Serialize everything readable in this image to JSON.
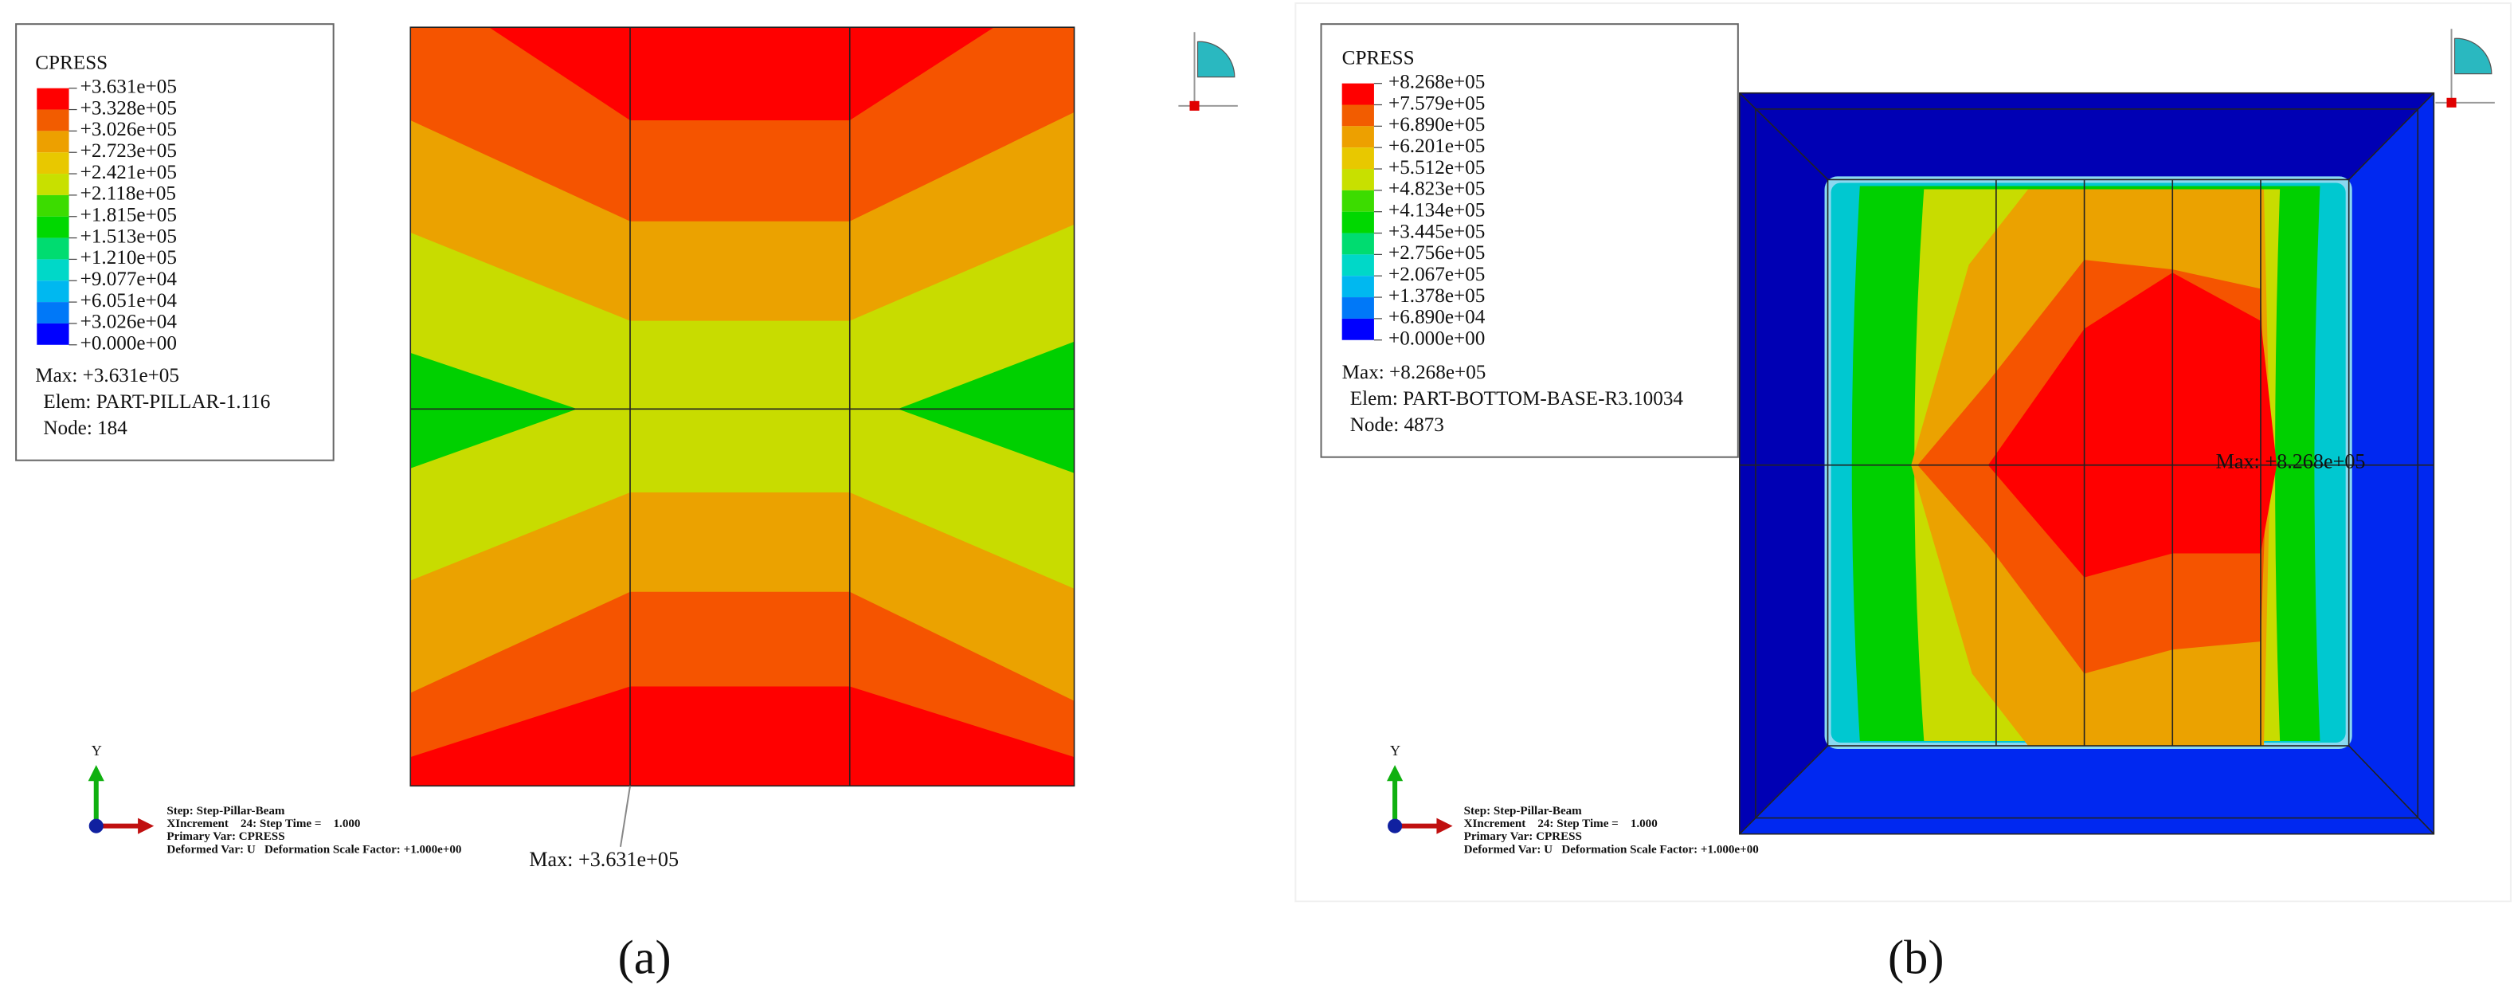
{
  "panels": [
    {
      "legend": {
        "title": "CPRESS",
        "labels": [
          "+3.631e+05",
          "+3.328e+05",
          "+3.026e+05",
          "+2.723e+05",
          "+2.421e+05",
          "+2.118e+05",
          "+1.815e+05",
          "+1.513e+05",
          "+1.210e+05",
          "+9.077e+04",
          "+6.051e+04",
          "+3.026e+04",
          "+0.000e+00"
        ]
      },
      "summary": [
        "Max: +3.631e+05",
        "Elem: PART-PILLAR-1.116",
        "Node: 184"
      ],
      "triad_label": "Y",
      "step_info": [
        "Step: Step-Pillar-Beam",
        "XIncrement    24: Step Time =    1.000",
        "Primary Var: CPRESS",
        "Deformed Var: U   Deformation Scale Factor: +1.000e+00"
      ],
      "max_annotation": "Max: +3.631e+05",
      "caption": "(a)"
    },
    {
      "legend": {
        "title": "CPRESS",
        "labels": [
          "+8.268e+05",
          "+7.579e+05",
          "+6.890e+05",
          "+6.201e+05",
          "+5.512e+05",
          "+4.823e+05",
          "+4.134e+05",
          "+3.445e+05",
          "+2.756e+05",
          "+2.067e+05",
          "+1.378e+05",
          "+6.890e+04",
          "+0.000e+00"
        ]
      },
      "summary": [
        "Max: +8.268e+05",
        "Elem: PART-BOTTOM-BASE-R3.10034",
        "Node: 4873"
      ],
      "triad_label": "Y",
      "step_info": [
        "Step: Step-Pillar-Beam",
        "XIncrement    24: Step Time =    1.000",
        "Primary Var: CPRESS",
        "Deformed Var: U   Deformation Scale Factor: +1.000e+00"
      ],
      "max_annotation": "Max: +8.268e+05",
      "caption": "(b)"
    }
  ]
}
